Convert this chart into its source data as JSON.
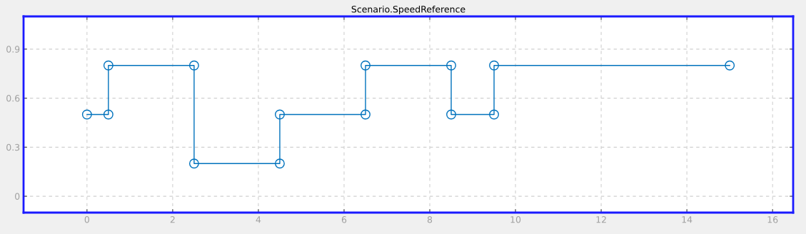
{
  "chart_data": {
    "type": "line",
    "title": "Scenario.SpeedReference",
    "x": [
      0,
      0.5,
      0.5,
      2.5,
      2.5,
      4.5,
      4.5,
      6.5,
      6.5,
      8.5,
      8.5,
      9.5,
      9.5,
      15
    ],
    "series": [
      {
        "color": "#0072bd",
        "values": [
          0.5,
          0.5,
          0.8,
          0.8,
          0.2,
          0.2,
          0.5,
          0.5,
          0.8,
          0.8,
          0.5,
          0.5,
          0.8,
          0.8
        ]
      }
    ],
    "xlim": [
      -1.48,
      16.48
    ],
    "ylim": [
      -0.1,
      1.1
    ],
    "xticks": [
      0,
      2,
      4,
      6,
      8,
      10,
      12,
      14,
      16
    ],
    "yticks": [
      0,
      0.3,
      0.6,
      0.9
    ],
    "grid": true,
    "marker": "circle",
    "line_style": "solid"
  }
}
